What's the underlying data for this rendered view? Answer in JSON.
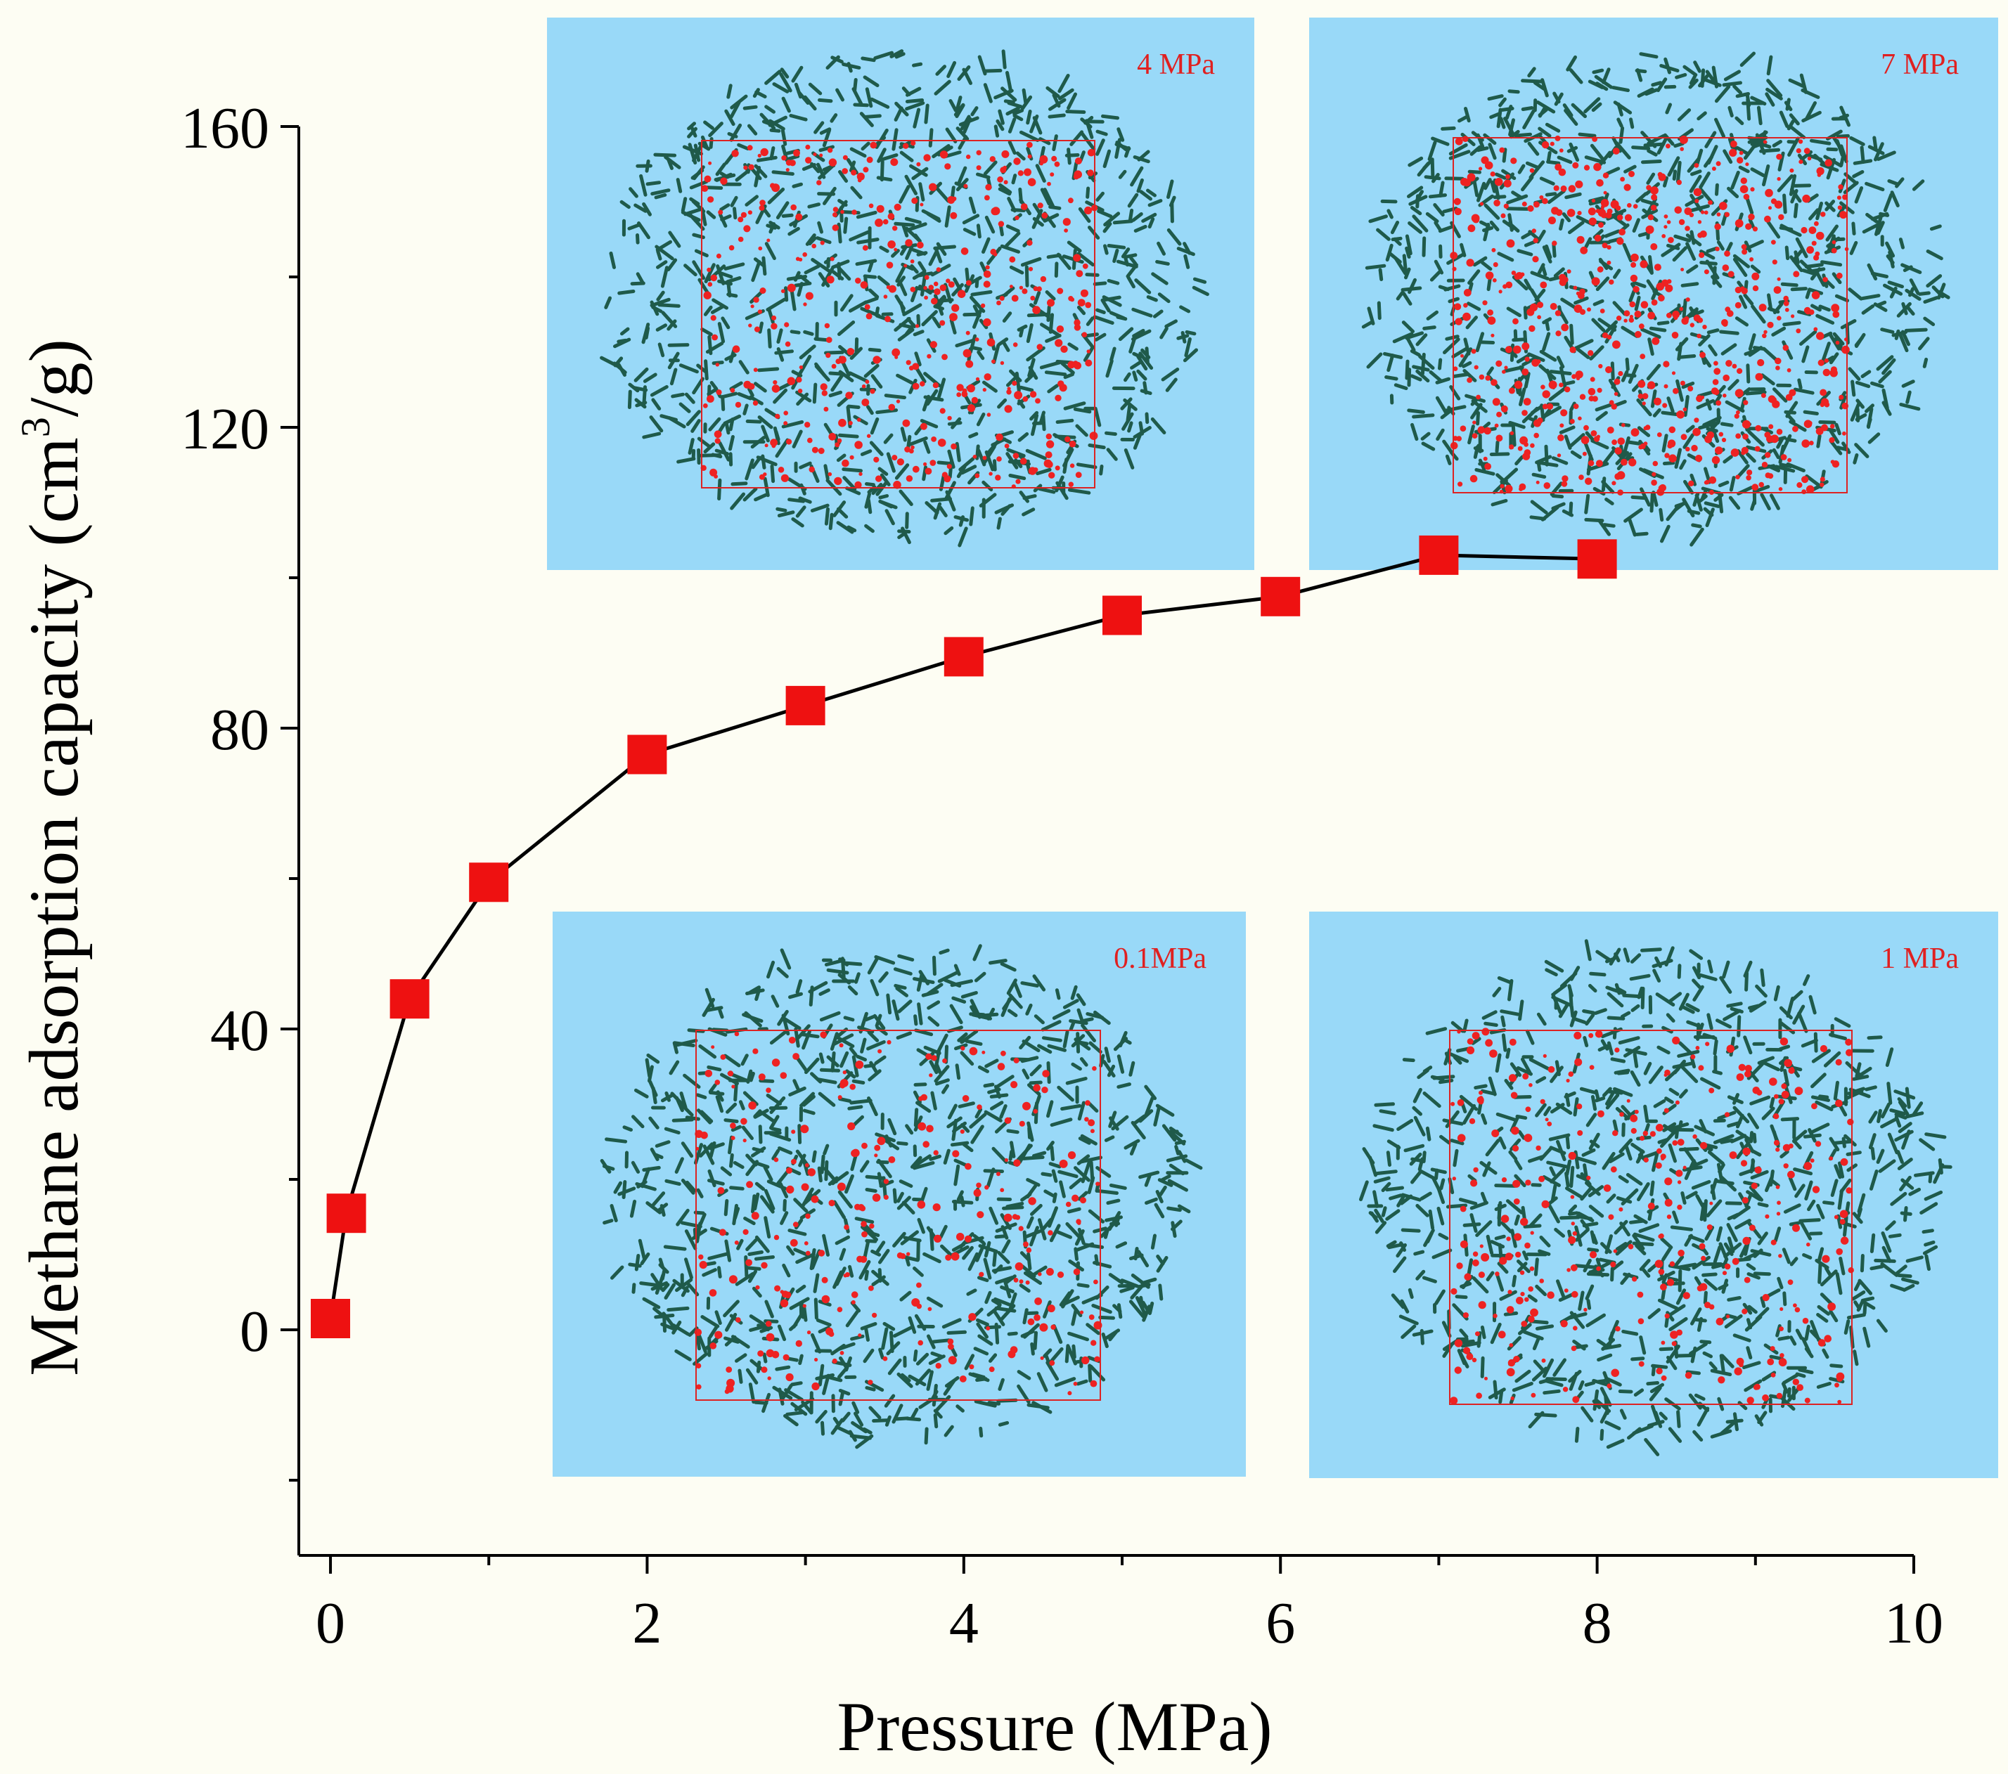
{
  "chart_data": {
    "type": "scatter",
    "title": "",
    "xlabel": "Pressure (MPa)",
    "ylabel_main": "Methane adsorption capacity (cm",
    "ylabel_sup": "3",
    "ylabel_tail": "/g)",
    "xlim": [
      -0.2,
      10
    ],
    "ylim": [
      -30,
      160
    ],
    "x_ticks": [
      0,
      2,
      4,
      6,
      8,
      10
    ],
    "y_ticks": [
      0,
      40,
      80,
      120,
      160
    ],
    "x_tick_labels": [
      "0",
      "2",
      "4",
      "6",
      "8",
      "10"
    ],
    "y_tick_labels": [
      "0",
      "40",
      "80",
      "120",
      "160"
    ],
    "series": [
      {
        "name": "Methane adsorption",
        "x": [
          0,
          0.1,
          0.5,
          1,
          2,
          3,
          4,
          5,
          6,
          7,
          8
        ],
        "y": [
          1.5,
          15.5,
          44,
          59.5,
          76.5,
          83,
          89.5,
          95,
          97.5,
          103,
          102.5
        ],
        "marker": "square",
        "marker_color": "#ee1111",
        "line_color": "#000000"
      }
    ],
    "insets": [
      {
        "label": "4 MPa",
        "density": 380,
        "seed": 11
      },
      {
        "label": "7 MPa",
        "density": 560,
        "seed": 23
      },
      {
        "label": "0.1MPa",
        "density": 240,
        "seed": 37
      },
      {
        "label": "1 MPa",
        "density": 300,
        "seed": 51
      }
    ],
    "colors": {
      "background": "#fdfdf3",
      "inset_bg": "#99d9f8",
      "molecule": "#1f5a4a",
      "methane": "#ee2222",
      "cell_box": "#dd2222",
      "inset_label": "#e02020"
    }
  }
}
